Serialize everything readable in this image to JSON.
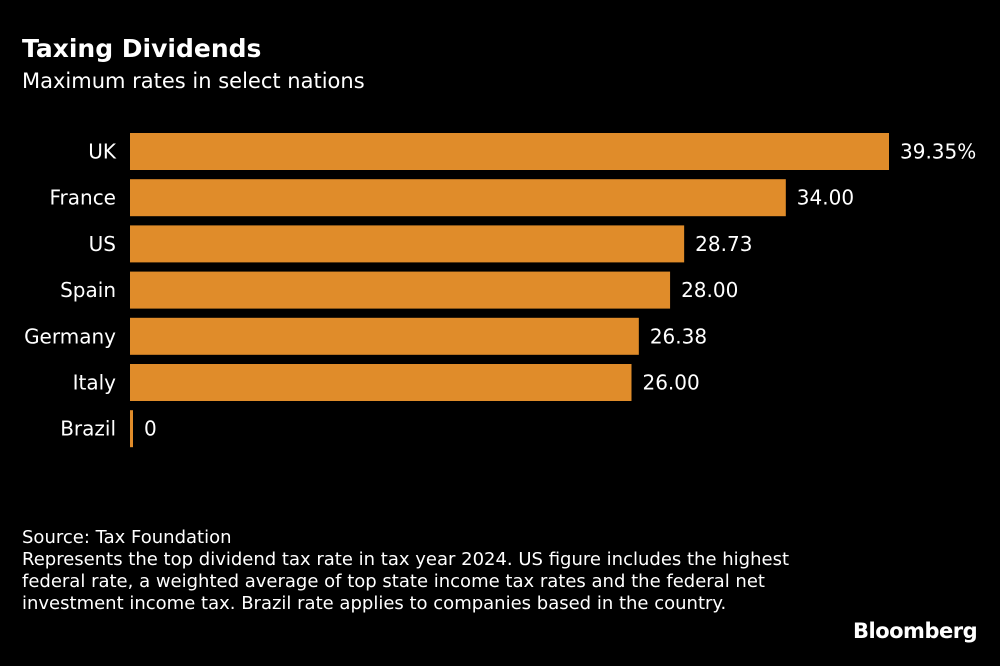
{
  "title": "Taxing Dividends",
  "subtitle": "Maximum rates in select nations",
  "source": "Source: Tax Foundation",
  "note": "Represents the top dividend tax rate in tax year 2024. US figure includes the highest federal rate, a weighted average of top state income tax rates and the federal net investment income tax. Brazil rate applies to companies based in the country.",
  "logo": "Bloomberg",
  "chart_data": {
    "type": "bar",
    "orientation": "horizontal",
    "title": "Taxing Dividends",
    "subtitle": "Maximum rates in select nations",
    "categories": [
      "UK",
      "France",
      "US",
      "Spain",
      "Germany",
      "Italy",
      "Brazil"
    ],
    "values": [
      39.35,
      34.0,
      28.73,
      28.0,
      26.38,
      26.0,
      0
    ],
    "labels": [
      "39.35%",
      "34.00",
      "28.73",
      "28.00",
      "26.38",
      "26.00",
      "0"
    ],
    "xlim": [
      0,
      39.35
    ],
    "grid": false,
    "bar_color": "#e08c2a",
    "background": "#000000"
  }
}
